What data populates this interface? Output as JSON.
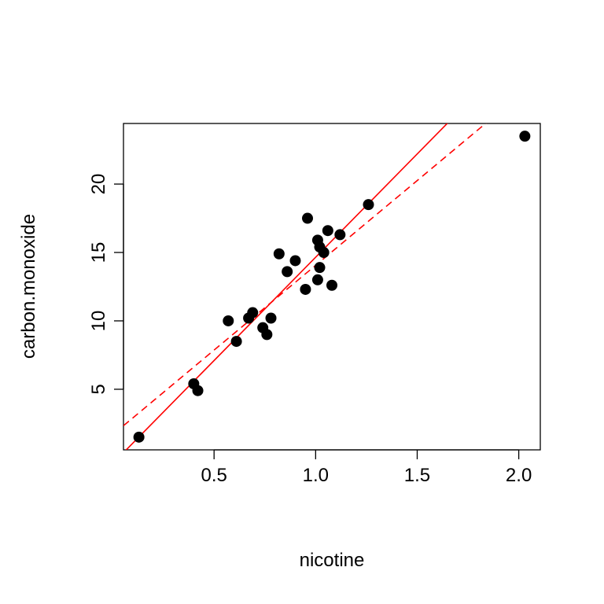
{
  "chart_data": {
    "type": "scatter",
    "title": "",
    "xlabel": "nicotine",
    "ylabel": "carbon.monoxide",
    "xlim": [
      0.054,
      2.106
    ],
    "ylim": [
      0.57,
      24.43
    ],
    "xticks": [
      0.5,
      1.0,
      1.5,
      2.0
    ],
    "xtick_labels": [
      "0.5",
      "1.0",
      "1.5",
      "2.0"
    ],
    "yticks": [
      5,
      10,
      15,
      20
    ],
    "ytick_labels": [
      "5",
      "10",
      "15",
      "20"
    ],
    "grid": false,
    "point_color": "#000000",
    "points": [
      [
        0.86,
        13.6
      ],
      [
        1.06,
        16.6
      ],
      [
        2.03,
        23.5
      ],
      [
        0.67,
        10.2
      ],
      [
        0.4,
        5.4
      ],
      [
        1.04,
        15.0
      ],
      [
        0.76,
        9.0
      ],
      [
        0.95,
        12.3
      ],
      [
        1.12,
        16.3
      ],
      [
        1.02,
        15.4
      ],
      [
        1.01,
        13.0
      ],
      [
        0.9,
        14.4
      ],
      [
        0.57,
        10.0
      ],
      [
        0.78,
        10.2
      ],
      [
        0.74,
        9.5
      ],
      [
        0.13,
        1.5
      ],
      [
        1.26,
        18.5
      ],
      [
        1.08,
        12.6
      ],
      [
        0.96,
        17.5
      ],
      [
        0.42,
        4.9
      ],
      [
        1.01,
        15.9
      ],
      [
        0.61,
        8.5
      ],
      [
        0.69,
        10.6
      ],
      [
        1.02,
        13.9
      ],
      [
        0.82,
        14.9
      ]
    ],
    "lines": [
      {
        "style": "solid",
        "color": "#ff0000",
        "intercept": -0.45,
        "slope": 15.1
      },
      {
        "style": "dashed",
        "color": "#ff0000",
        "intercept": 1.665,
        "slope": 12.395
      }
    ]
  }
}
